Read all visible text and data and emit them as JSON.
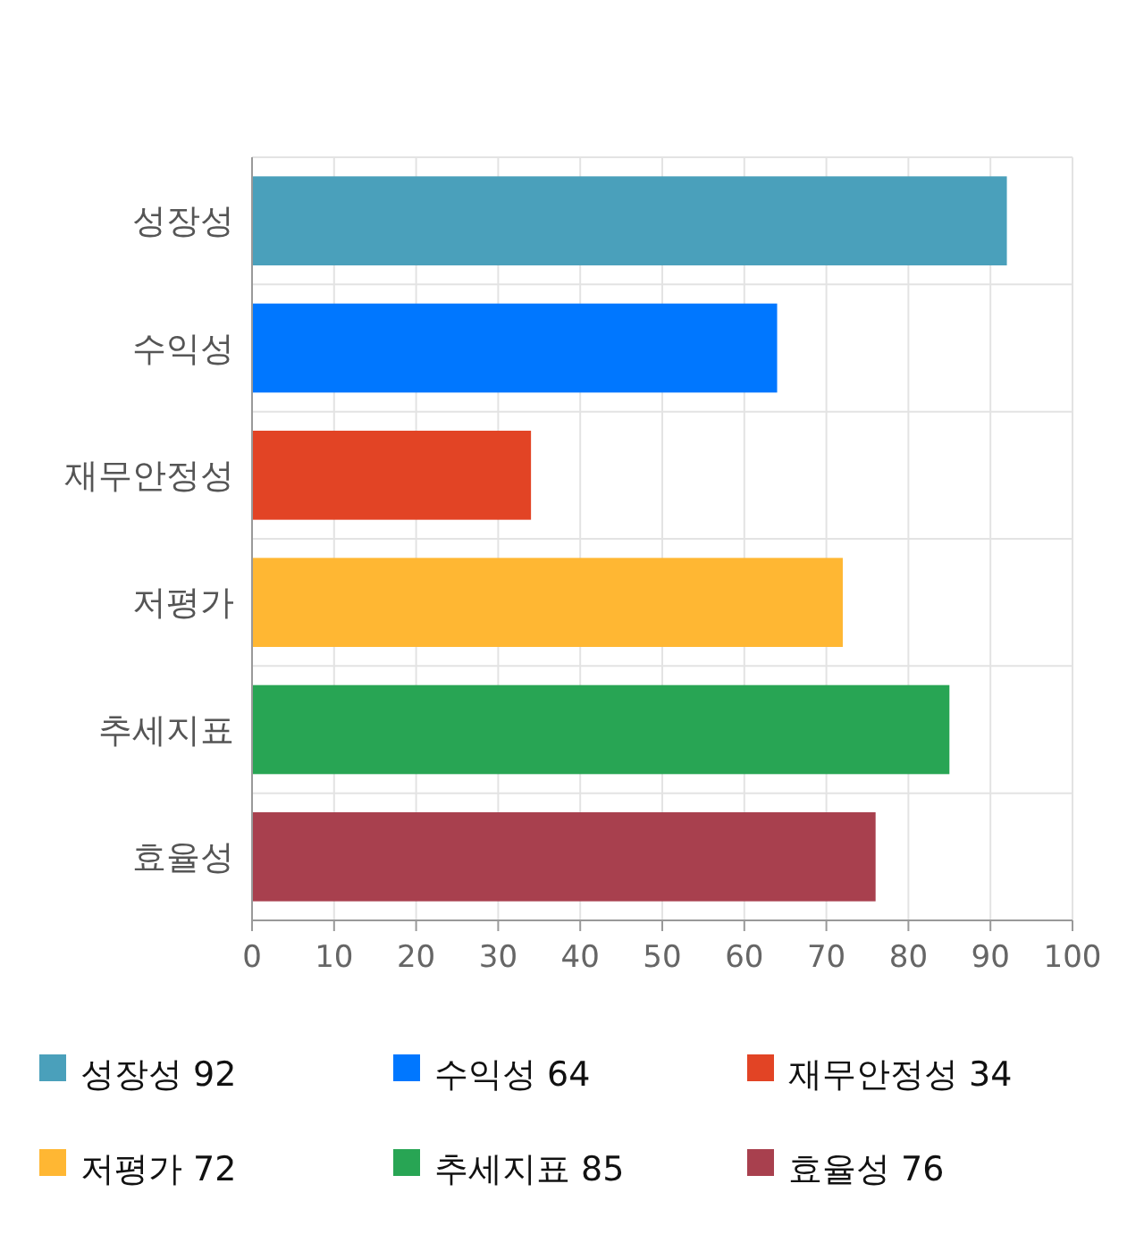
{
  "chart_data": {
    "type": "bar",
    "orientation": "horizontal",
    "stacked": true,
    "categories": [
      "성장성",
      "수익성",
      "재무안정성",
      "저평가",
      "추세지표",
      "효율성"
    ],
    "series": [
      {
        "name": "성장성 92",
        "color": "#4aa0bb",
        "values": [
          92,
          null,
          null,
          null,
          null,
          null
        ]
      },
      {
        "name": "수익성 64",
        "color": "#0077ff",
        "values": [
          null,
          64,
          null,
          null,
          null,
          null
        ]
      },
      {
        "name": "재무안정성 34",
        "color": "#e24425",
        "values": [
          null,
          null,
          34,
          null,
          null,
          null
        ]
      },
      {
        "name": "저평가 72",
        "color": "#ffb733",
        "values": [
          null,
          null,
          null,
          72,
          null,
          null
        ]
      },
      {
        "name": "추세지표 85",
        "color": "#28a554",
        "values": [
          null,
          null,
          null,
          null,
          85,
          null
        ]
      },
      {
        "name": "효율성 76",
        "color": "#a8404e",
        "values": [
          null,
          null,
          null,
          null,
          null,
          76
        ]
      }
    ],
    "xlim": [
      0,
      100
    ],
    "xticks": [
      0,
      10,
      20,
      30,
      40,
      50,
      60,
      70,
      80,
      90,
      100
    ],
    "grid": true,
    "legend": "bottom"
  }
}
